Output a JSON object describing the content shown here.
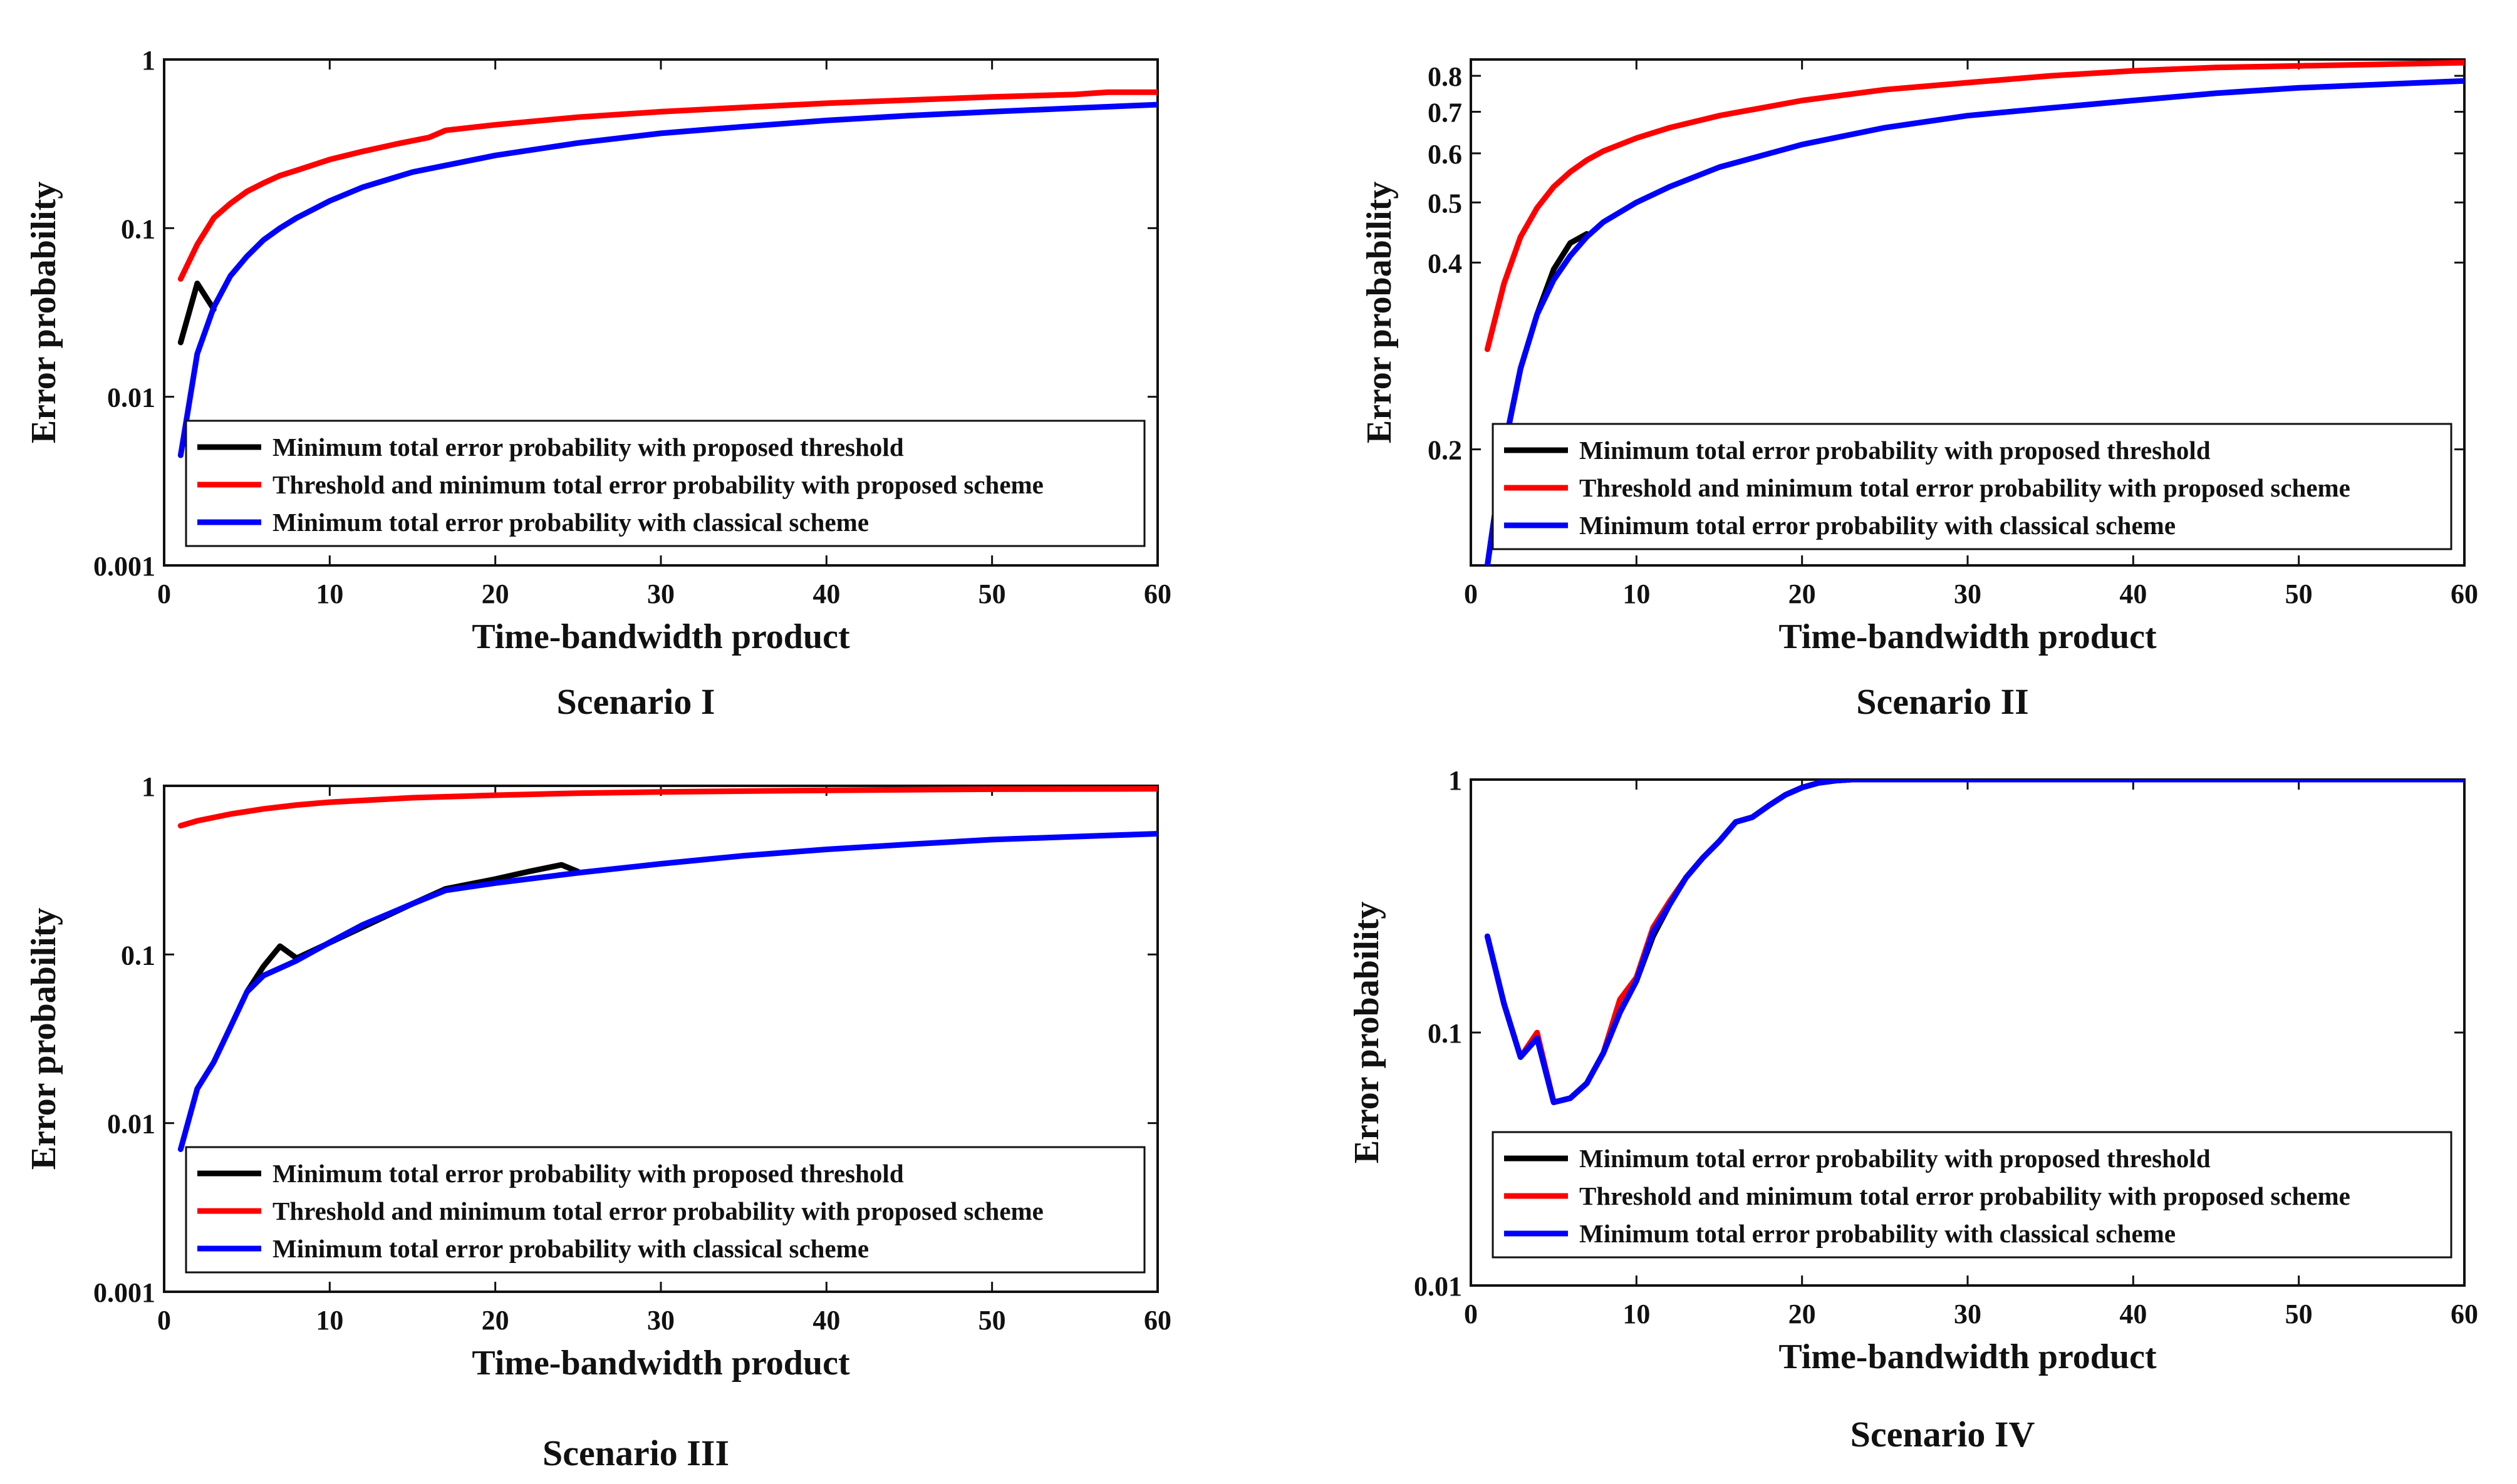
{
  "colors": {
    "proposed_threshold": "#000000",
    "proposed_scheme": "#ff0000",
    "classical_scheme": "#0000ff",
    "axes": "#111111"
  },
  "chart_data": [
    {
      "type": "line",
      "caption": "Scenario I",
      "xlabel": "Time-bandwidth product",
      "ylabel": "Error probability",
      "xscale": "linear",
      "yscale": "log",
      "xlim": [
        0,
        60
      ],
      "ylim": [
        0.001,
        1
      ],
      "xticks": [
        0,
        10,
        20,
        30,
        40,
        50,
        60
      ],
      "xtick_labels": [
        "0",
        "10",
        "20",
        "30",
        "40",
        "50",
        "60"
      ],
      "yticks": [
        0.001,
        0.01,
        0.1,
        1
      ],
      "ytick_labels": [
        "0.001",
        "0.01",
        "0.1",
        "1"
      ],
      "legend_position": "bottom-right",
      "series": [
        {
          "name": "Minimum total error probability with proposed threshold",
          "color": "#000000",
          "x": [
            1,
            2,
            3
          ],
          "y": [
            0.021,
            0.047,
            0.033
          ]
        },
        {
          "name": "Threshold and minimum total error probability with proposed scheme",
          "color": "#ff0000",
          "x": [
            1,
            2,
            3,
            4,
            5,
            6,
            7,
            8,
            10,
            12,
            14,
            16,
            17,
            20,
            25,
            30,
            35,
            40,
            45,
            50,
            55,
            56,
            57,
            60
          ],
          "y": [
            0.05,
            0.08,
            0.115,
            0.14,
            0.165,
            0.185,
            0.205,
            0.22,
            0.255,
            0.285,
            0.315,
            0.345,
            0.38,
            0.41,
            0.455,
            0.49,
            0.52,
            0.55,
            0.575,
            0.6,
            0.62,
            0.63,
            0.64,
            0.64
          ]
        },
        {
          "name": "Minimum total error probability with classical scheme",
          "color": "#0000ff",
          "x": [
            1,
            2,
            3,
            4,
            5,
            6,
            7,
            8,
            10,
            12,
            15,
            20,
            25,
            30,
            35,
            40,
            45,
            50,
            55,
            60
          ],
          "y": [
            0.0045,
            0.018,
            0.034,
            0.052,
            0.068,
            0.085,
            0.1,
            0.115,
            0.145,
            0.175,
            0.215,
            0.27,
            0.32,
            0.365,
            0.4,
            0.435,
            0.465,
            0.49,
            0.515,
            0.54
          ]
        }
      ]
    },
    {
      "type": "line",
      "caption": "Scenario II",
      "xlabel": "Time-bandwidth product",
      "ylabel": "Error probability",
      "xscale": "linear",
      "yscale": "log",
      "xlim": [
        0,
        60
      ],
      "ylim": [
        0.13,
        0.85
      ],
      "xticks": [
        0,
        10,
        20,
        30,
        40,
        50,
        60
      ],
      "xtick_labels": [
        "0",
        "10",
        "20",
        "30",
        "40",
        "50",
        "60"
      ],
      "yticks": [
        0.2,
        0.4,
        0.5,
        0.6,
        0.7,
        0.8
      ],
      "ytick_labels": [
        "0.2",
        "0.4",
        "0.5",
        "0.6",
        "0.7",
        "0.8"
      ],
      "legend_position": "bottom-right",
      "series": [
        {
          "name": "Minimum total error probability with proposed threshold",
          "color": "#000000",
          "x": [
            1,
            2,
            3,
            4,
            5,
            6,
            7
          ],
          "y": [
            0.13,
            0.2,
            0.27,
            0.33,
            0.39,
            0.43,
            0.445
          ]
        },
        {
          "name": "Threshold and minimum total error probability with proposed scheme",
          "color": "#ff0000",
          "x": [
            1,
            2,
            3,
            4,
            5,
            6,
            7,
            8,
            10,
            12,
            15,
            20,
            25,
            30,
            35,
            40,
            45,
            50,
            55,
            60
          ],
          "y": [
            0.29,
            0.37,
            0.44,
            0.49,
            0.53,
            0.56,
            0.585,
            0.605,
            0.635,
            0.66,
            0.69,
            0.73,
            0.76,
            0.78,
            0.8,
            0.815,
            0.825,
            0.83,
            0.835,
            0.84
          ]
        },
        {
          "name": "Minimum total error probability with classical scheme",
          "color": "#0000ff",
          "x": [
            1,
            2,
            3,
            4,
            5,
            6,
            7,
            8,
            10,
            12,
            15,
            20,
            25,
            30,
            35,
            40,
            45,
            50,
            55,
            60
          ],
          "y": [
            0.13,
            0.2,
            0.27,
            0.33,
            0.375,
            0.41,
            0.44,
            0.465,
            0.5,
            0.53,
            0.57,
            0.62,
            0.66,
            0.69,
            0.71,
            0.73,
            0.75,
            0.765,
            0.775,
            0.785
          ]
        }
      ]
    },
    {
      "type": "line",
      "caption": "Scenario III",
      "xlabel": "Time-bandwidth product",
      "ylabel": "Error probability",
      "xscale": "linear",
      "yscale": "log",
      "xlim": [
        0,
        60
      ],
      "ylim": [
        0.001,
        1
      ],
      "xticks": [
        0,
        10,
        20,
        30,
        40,
        50,
        60
      ],
      "xtick_labels": [
        "0",
        "10",
        "20",
        "30",
        "40",
        "50",
        "60"
      ],
      "yticks": [
        0.001,
        0.01,
        0.1,
        1
      ],
      "ytick_labels": [
        "0.001",
        "0.01",
        "0.1",
        "1"
      ],
      "legend_position": "bottom-right",
      "series": [
        {
          "name": "Minimum total error probability with proposed threshold",
          "color": "#000000",
          "x": [
            5,
            6,
            7,
            8,
            15,
            17,
            20,
            22,
            24,
            25
          ],
          "y": [
            0.06,
            0.085,
            0.112,
            0.095,
            0.2,
            0.245,
            0.28,
            0.31,
            0.34,
            0.31
          ]
        },
        {
          "name": "Threshold and minimum total error probability with proposed scheme",
          "color": "#ff0000",
          "x": [
            1,
            2,
            4,
            6,
            8,
            10,
            15,
            20,
            25,
            30,
            40,
            50,
            60
          ],
          "y": [
            0.58,
            0.62,
            0.68,
            0.73,
            0.77,
            0.8,
            0.85,
            0.88,
            0.905,
            0.92,
            0.94,
            0.955,
            0.96
          ]
        },
        {
          "name": "Minimum total error probability with classical scheme",
          "color": "#0000ff",
          "x": [
            1,
            2,
            3,
            4,
            5,
            6,
            7,
            8,
            10,
            12,
            15,
            17,
            20,
            25,
            30,
            35,
            40,
            45,
            50,
            55,
            60
          ],
          "y": [
            0.007,
            0.016,
            0.023,
            0.037,
            0.06,
            0.075,
            0.083,
            0.092,
            0.118,
            0.15,
            0.2,
            0.24,
            0.265,
            0.305,
            0.345,
            0.385,
            0.42,
            0.45,
            0.48,
            0.5,
            0.52
          ]
        }
      ]
    },
    {
      "type": "line",
      "caption": "Scenario IV",
      "xlabel": "Time-bandwidth product",
      "ylabel": "Error probability",
      "xscale": "linear",
      "yscale": "log",
      "xlim": [
        0,
        60
      ],
      "ylim": [
        0.01,
        1
      ],
      "xticks": [
        0,
        10,
        20,
        30,
        40,
        50,
        60
      ],
      "xtick_labels": [
        "0",
        "10",
        "20",
        "30",
        "40",
        "50",
        "60"
      ],
      "yticks": [
        0.01,
        0.1,
        1
      ],
      "ytick_labels": [
        "0.01",
        "0.1",
        "1"
      ],
      "legend_position": "bottom-right",
      "series": [
        {
          "name": "Minimum total error probability with proposed threshold",
          "color": "#000000",
          "x": [
            1,
            2,
            3,
            4,
            5,
            6,
            7,
            8,
            9,
            10,
            11,
            12,
            13,
            14,
            15,
            16,
            17,
            18,
            19,
            20,
            21,
            22,
            23,
            25,
            30,
            40,
            50,
            60
          ],
          "y": [
            0.24,
            0.13,
            0.08,
            0.095,
            0.053,
            0.055,
            0.063,
            0.083,
            0.12,
            0.16,
            0.24,
            0.32,
            0.41,
            0.49,
            0.57,
            0.68,
            0.71,
            0.79,
            0.87,
            0.93,
            0.97,
            0.99,
            1,
            1,
            1,
            1,
            1,
            1
          ]
        },
        {
          "name": "Threshold and minimum total error probability with proposed scheme",
          "color": "#ff0000",
          "x": [
            1,
            2,
            3,
            4,
            5,
            6,
            7,
            8,
            9,
            10,
            11,
            12,
            13,
            14,
            15,
            16,
            17,
            18,
            19,
            20,
            21,
            22,
            23,
            25,
            30,
            40,
            50,
            60
          ],
          "y": [
            0.24,
            0.13,
            0.08,
            0.1,
            0.053,
            0.055,
            0.063,
            0.083,
            0.135,
            0.165,
            0.26,
            0.33,
            0.41,
            0.49,
            0.57,
            0.68,
            0.71,
            0.79,
            0.87,
            0.93,
            0.97,
            0.99,
            1,
            1,
            1,
            1,
            1,
            1
          ]
        },
        {
          "name": "Minimum total error probability with classical scheme",
          "color": "#0000ff",
          "x": [
            1,
            2,
            3,
            4,
            5,
            6,
            7,
            8,
            9,
            10,
            11,
            12,
            13,
            14,
            15,
            16,
            17,
            18,
            19,
            20,
            21,
            22,
            23,
            25,
            30,
            40,
            50,
            60
          ],
          "y": [
            0.24,
            0.13,
            0.08,
            0.095,
            0.053,
            0.055,
            0.063,
            0.083,
            0.12,
            0.16,
            0.25,
            0.32,
            0.41,
            0.49,
            0.57,
            0.68,
            0.71,
            0.79,
            0.87,
            0.93,
            0.97,
            0.99,
            1,
            1,
            1,
            1,
            1,
            1
          ]
        }
      ]
    }
  ]
}
